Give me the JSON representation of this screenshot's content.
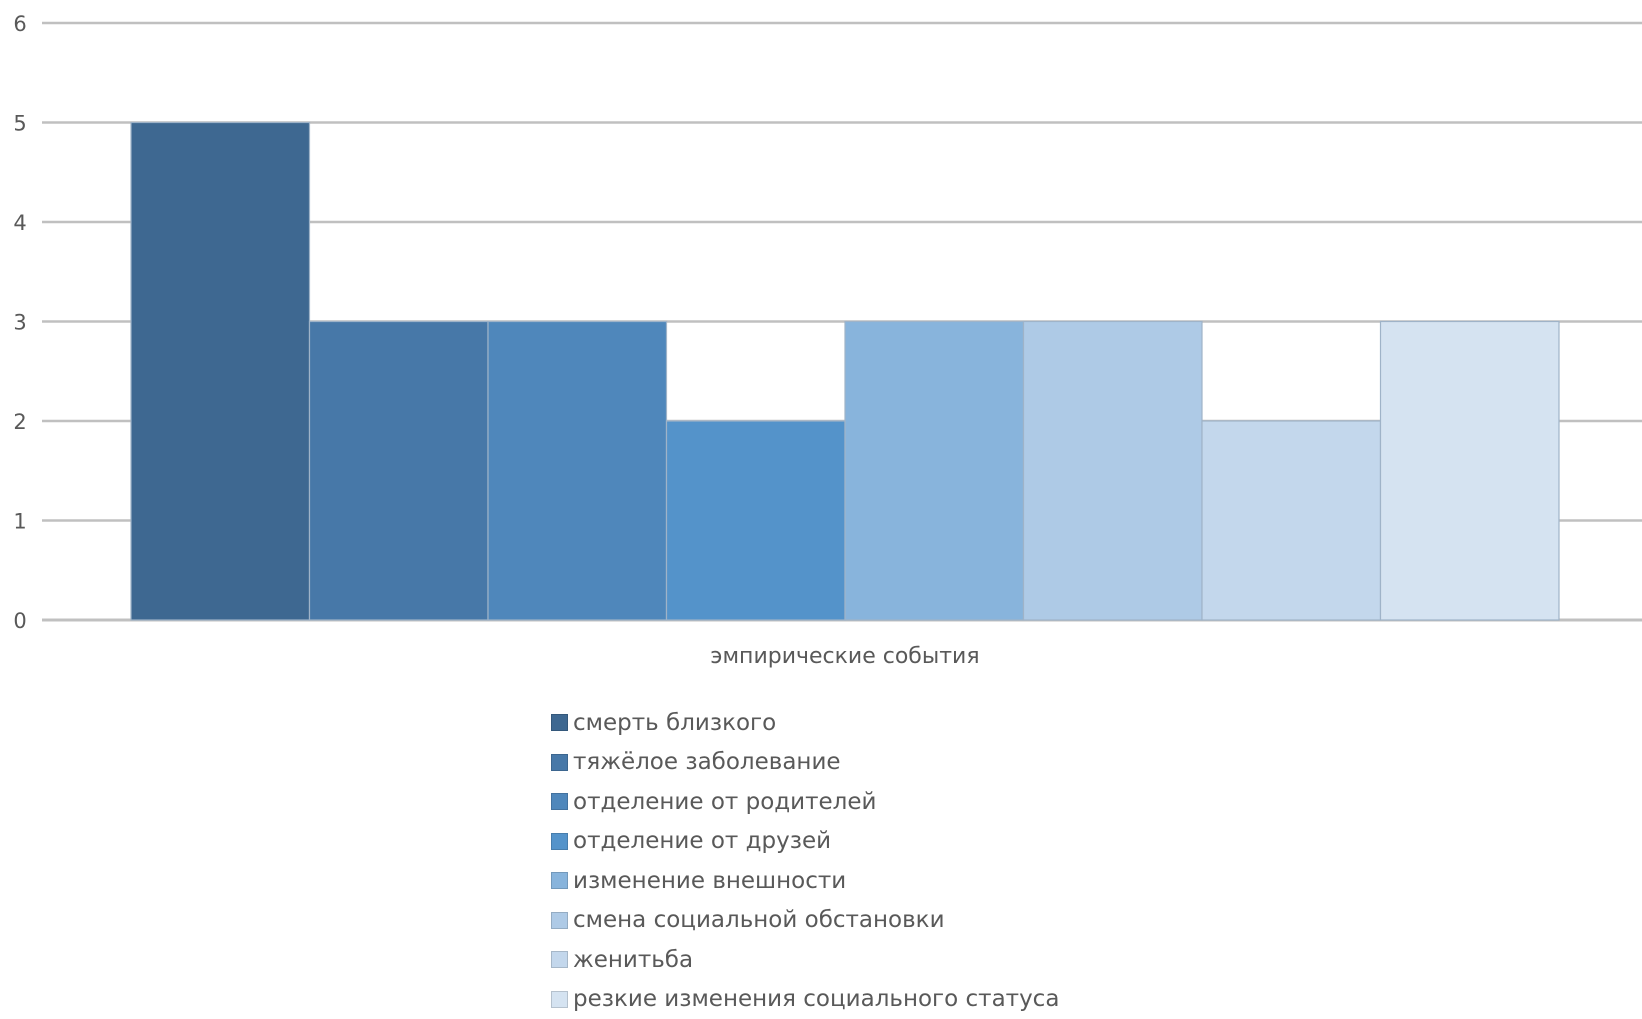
{
  "chart_data": {
    "type": "bar",
    "title": "",
    "xlabel": "эмпирические события",
    "ylabel": "",
    "ylim": [
      0,
      6
    ],
    "yticks": [
      0,
      1,
      2,
      3,
      4,
      5,
      6
    ],
    "grid": true,
    "legend_position": "bottom",
    "categories": [
      "эмпирические события"
    ],
    "series": [
      {
        "name": "смерть близкого",
        "values": [
          5
        ],
        "color": "#3e6891"
      },
      {
        "name": "тяжёлое заболевание",
        "values": [
          3
        ],
        "color": "#4778a8"
      },
      {
        "name": "отделение от родителей",
        "values": [
          3
        ],
        "color": "#4f87bb"
      },
      {
        "name": "отделение от друзей",
        "values": [
          2
        ],
        "color": "#5493ca"
      },
      {
        "name": "изменение внешности",
        "values": [
          3
        ],
        "color": "#88b4dc"
      },
      {
        "name": "смена социальной обстановки",
        "values": [
          3
        ],
        "color": "#aecae6"
      },
      {
        "name": "женитьба",
        "values": [
          2
        ],
        "color": "#c3d7ec"
      },
      {
        "name": "резкие изменения социального статуса",
        "values": [
          3
        ],
        "color": "#d5e3f1"
      }
    ]
  }
}
